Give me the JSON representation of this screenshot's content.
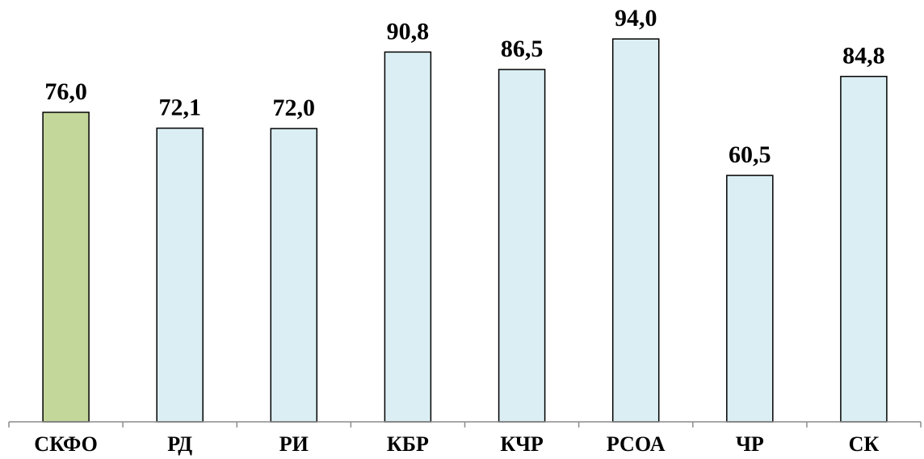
{
  "chart_data": {
    "type": "bar",
    "categories": [
      "СКФО",
      "РД",
      "РИ",
      "КБР",
      "КЧР",
      "РСОА",
      "ЧР",
      "СК"
    ],
    "values": [
      76.0,
      72.1,
      72.0,
      90.8,
      86.5,
      94.0,
      60.5,
      84.8
    ],
    "value_labels": [
      "76,0",
      "72,1",
      "72,0",
      "90,8",
      "86,5",
      "94,0",
      "60,5",
      "84,8"
    ],
    "ylim": [
      0,
      100
    ],
    "grid": false,
    "legend": "none",
    "colors": {
      "highlight_fill": "#c4d79b",
      "default_fill": "#daeef3",
      "bar_stroke": "#000000",
      "axis": "#8c8c8c"
    },
    "highlight_index": 0
  }
}
